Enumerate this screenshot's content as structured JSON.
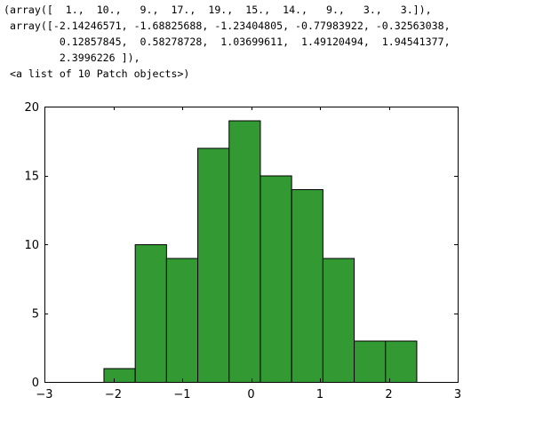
{
  "output": {
    "lines": [
      "(array([  1.,  10.,   9.,  17.,  19.,  15.,  14.,   9.,   3.,   3.]),",
      " array([-2.14246571, -1.68825688, -1.23404805, -0.77983922, -0.32563038,",
      "         0.12857845,  0.58278728,  1.03699611,  1.49120494,  1.94541377,",
      "         2.3996226 ]),",
      " <a list of 10 Patch objects>)"
    ]
  },
  "chart_data": {
    "type": "bar",
    "subtype": "histogram",
    "bin_edges": [
      -2.14246571,
      -1.68825688,
      -1.23404805,
      -0.77983922,
      -0.32563038,
      0.12857845,
      0.58278728,
      1.03699611,
      1.49120494,
      1.94541377,
      2.3996226
    ],
    "values": [
      1,
      10,
      9,
      17,
      19,
      15,
      14,
      9,
      3,
      3
    ],
    "xlim": [
      -3,
      3
    ],
    "ylim": [
      0,
      20
    ],
    "xticks": [
      -3,
      -2,
      -1,
      0,
      1,
      2,
      3
    ],
    "xtick_labels": [
      "−3",
      "−2",
      "−1",
      "0",
      "1",
      "2",
      "3"
    ],
    "yticks": [
      0,
      5,
      10,
      15,
      20
    ],
    "ytick_labels": [
      "0",
      "5",
      "10",
      "15",
      "20"
    ],
    "title": "",
    "xlabel": "",
    "ylabel": "",
    "grid": false,
    "bar_color": "#339933",
    "edge_color": "#000000"
  }
}
